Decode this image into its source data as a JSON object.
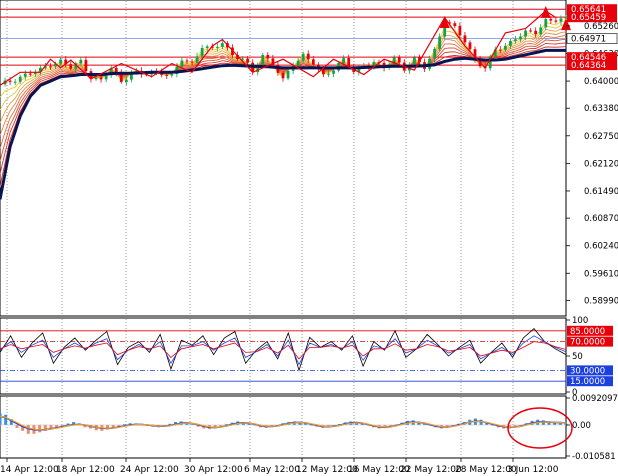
{
  "chart_data": [
    {
      "type": "candlestick",
      "panel": "price",
      "x_tick_labels": [
        "14 Apr 12:00",
        "18 Apr 12:00",
        "24 Apr 12:00",
        "30 Apr 12:00",
        "6 May 12:00",
        "12 May 12:00",
        "16 May 12:00",
        "22 May 12:00",
        "28 May 12:00",
        "3 Jun 12:00"
      ],
      "y_tick_labels": [
        "0.65260",
        "0.64630",
        "0.64000",
        "0.63380",
        "0.62750",
        "0.62120",
        "0.61490",
        "0.60870",
        "0.60240",
        "0.59610",
        "0.58990"
      ],
      "ylim": [
        0.5868,
        0.6576
      ],
      "current_price": {
        "value": 0.64971,
        "label": "0.64971"
      },
      "horizontal_levels": [
        {
          "value": 0.65641,
          "label": "0.65641",
          "color": "#e8000b"
        },
        {
          "value": 0.65459,
          "label": "0.65459",
          "color": "#e8000b"
        },
        {
          "value": 0.64546,
          "label": "0.64546",
          "color": "#e8000b"
        },
        {
          "value": 0.64364,
          "label": "0.64364",
          "color": "#e8000b"
        }
      ],
      "price_path_x": [
        0,
        2,
        4,
        6,
        8,
        10,
        12,
        14,
        16,
        18,
        20,
        22,
        24,
        26,
        28,
        30,
        32,
        34,
        36,
        38,
        40,
        42,
        44,
        46,
        48,
        50,
        52,
        54,
        56,
        58,
        60,
        62,
        64,
        66,
        68,
        70,
        72,
        74,
        76,
        78,
        80,
        82,
        84,
        86,
        88,
        90,
        92,
        94,
        96,
        98,
        100,
        102,
        104,
        106,
        108
      ],
      "price_path_y": [
        0.639,
        0.64,
        0.641,
        0.6418,
        0.6425,
        0.644,
        0.6445,
        0.643,
        0.6445,
        0.641,
        0.64,
        0.643,
        0.64,
        0.642,
        0.6415,
        0.642,
        0.642,
        0.641,
        0.645,
        0.644,
        0.648,
        0.647,
        0.649,
        0.646,
        0.645,
        0.642,
        0.646,
        0.644,
        0.64,
        0.644,
        0.646,
        0.644,
        0.641,
        0.643,
        0.645,
        0.642,
        0.6435,
        0.6445,
        0.643,
        0.645,
        0.643,
        0.645,
        0.643,
        0.647,
        0.654,
        0.652,
        0.649,
        0.645,
        0.643,
        0.647,
        0.648,
        0.65,
        0.651,
        0.651,
        0.654
      ],
      "ma_slow_path_y": [
        0.613,
        0.625,
        0.632,
        0.6365,
        0.639,
        0.64,
        0.641,
        0.6412,
        0.6415,
        0.6415,
        0.6415,
        0.6417,
        0.6418,
        0.6418,
        0.6419,
        0.642,
        0.642,
        0.642,
        0.6422,
        0.6425,
        0.6428,
        0.6432,
        0.6435,
        0.6436,
        0.6435,
        0.6434,
        0.6433,
        0.6432,
        0.643,
        0.643,
        0.643,
        0.643,
        0.643,
        0.643,
        0.643,
        0.643,
        0.6431,
        0.6432,
        0.6433,
        0.6434,
        0.6434,
        0.6434,
        0.6435,
        0.6437,
        0.6445,
        0.645,
        0.6452,
        0.645,
        0.6448,
        0.6448,
        0.645,
        0.6455,
        0.646,
        0.6465,
        0.647
      ],
      "zigzag_x": [
        0,
        4,
        8,
        10,
        12,
        14,
        18,
        24,
        30,
        34,
        38,
        42,
        44,
        50,
        56,
        62,
        66,
        72,
        76,
        82,
        88,
        92,
        96,
        100,
        104,
        108,
        110
      ],
      "zigzag_y": [
        0.639,
        0.642,
        0.642,
        0.645,
        0.643,
        0.6448,
        0.6405,
        0.644,
        0.641,
        0.644,
        0.642,
        0.648,
        0.6495,
        0.642,
        0.645,
        0.641,
        0.645,
        0.6415,
        0.645,
        0.6425,
        0.6545,
        0.648,
        0.643,
        0.651,
        0.652,
        0.656,
        0.6545
      ],
      "arrow_heads": [
        {
          "x": 88,
          "y": 0.6535
        },
        {
          "x": 108,
          "y": 0.6558
        },
        {
          "x": 112,
          "y": 0.653
        }
      ]
    },
    {
      "type": "line",
      "panel": "stochastic",
      "y_tick_labels": [
        "100",
        "50",
        "0"
      ],
      "ylim": [
        0,
        100
      ],
      "levels": [
        {
          "value": 85,
          "label": "85.0000",
          "color": "#e8000b"
        },
        {
          "value": 70,
          "label": "70.0000",
          "color": "#e8000b"
        },
        {
          "value": 30,
          "label": "30.0000",
          "color": "#1c3fe0"
        },
        {
          "value": 15,
          "label": "15.0000",
          "color": "#1c3fe0"
        }
      ],
      "series": [
        {
          "color": "#000000",
          "values": [
            55,
            78,
            48,
            68,
            82,
            40,
            62,
            75,
            58,
            72,
            84,
            38,
            62,
            70,
            55,
            80,
            32,
            72,
            65,
            78,
            52,
            75,
            84,
            40,
            58,
            70,
            46,
            82,
            30,
            76,
            62,
            70,
            58,
            78,
            36,
            70,
            58,
            85,
            48,
            60,
            80,
            66,
            50,
            62,
            72,
            40,
            55,
            68,
            48,
            75,
            88,
            70,
            60,
            52
          ]
        },
        {
          "color": "#1c3fe0",
          "values": [
            58,
            70,
            55,
            65,
            72,
            48,
            60,
            68,
            60,
            68,
            74,
            45,
            58,
            66,
            58,
            70,
            40,
            64,
            64,
            70,
            58,
            68,
            75,
            48,
            56,
            66,
            50,
            72,
            38,
            68,
            62,
            66,
            60,
            70,
            44,
            64,
            60,
            74,
            54,
            60,
            72,
            64,
            54,
            60,
            66,
            46,
            54,
            62,
            52,
            68,
            78,
            70,
            62,
            56
          ]
        },
        {
          "color": "#e8000b",
          "values": [
            60,
            66,
            60,
            63,
            66,
            55,
            60,
            64,
            61,
            65,
            68,
            52,
            58,
            63,
            60,
            64,
            48,
            60,
            63,
            66,
            60,
            64,
            68,
            55,
            56,
            62,
            54,
            65,
            46,
            62,
            62,
            64,
            61,
            65,
            50,
            60,
            60,
            67,
            58,
            60,
            66,
            63,
            57,
            59,
            62,
            50,
            54,
            58,
            55,
            62,
            70,
            68,
            63,
            59
          ]
        }
      ]
    },
    {
      "type": "bar",
      "panel": "macd",
      "y_tick_labels": [
        "0.0092097",
        "0.00",
        "-0.010581"
      ],
      "ylim": [
        -0.010581,
        0.0092097
      ],
      "histogram": [
        0.004,
        0.0035,
        0.002,
        -0.001,
        -0.002,
        -0.003,
        -0.003,
        -0.0025,
        -0.002,
        -0.0015,
        -0.001,
        -0.0005,
        0.0005,
        0.001,
        0.0005,
        -0.0008,
        -0.0012,
        -0.0018,
        -0.002,
        -0.0015,
        -0.001,
        -0.0005,
        0.0003,
        0.0006,
        0.0005,
        0.0002,
        -0.0003,
        -0.0006,
        -0.0008,
        -0.0005,
        0.0004,
        0.001,
        0.0012,
        0.0008,
        0.0002,
        -0.0006,
        -0.0012,
        -0.0014,
        -0.001,
        -0.0004,
        0.0003,
        0.0008,
        0.0012,
        0.0009,
        0.0004,
        -0.0002,
        -0.0008,
        -0.001,
        -0.0006,
        0.0,
        0.0006,
        0.001,
        0.0012,
        0.001,
        0.0006,
        0.0,
        -0.0006,
        -0.001,
        -0.0008,
        -0.0004,
        0.0003,
        0.0009,
        0.0012,
        0.001,
        0.0005,
        -0.0002,
        -0.0008,
        -0.0012,
        -0.001,
        -0.0005,
        0.0002,
        0.0008,
        0.0014,
        0.0016,
        0.0012,
        0.0006,
        -0.0002,
        -0.0008,
        -0.0012,
        -0.001,
        -0.0004,
        0.0004,
        0.001,
        0.0018,
        0.0022,
        0.0018,
        0.0008,
        0.0,
        -0.0008,
        -0.0012,
        -0.0012,
        -0.0008,
        -0.0002,
        0.0006,
        0.0014,
        0.0018,
        0.0016,
        0.0012,
        0.0008,
        0.0006,
        0.0004
      ],
      "signal_line": [
        0.003,
        0.0025,
        0.0015,
        0.0005,
        -0.0005,
        -0.0012,
        -0.0016,
        -0.0017,
        -0.0016,
        -0.0013,
        -0.001,
        -0.0006,
        -0.0002,
        0.0001,
        0.0002,
        0.0,
        -0.0004,
        -0.0008,
        -0.0011,
        -0.0012,
        -0.001,
        -0.0007,
        -0.0003,
        0.0,
        0.0002,
        0.0002,
        0.0,
        -0.0002,
        -0.0004,
        -0.0004,
        -0.0002,
        0.0002,
        0.0006,
        0.0007,
        0.0005,
        0.0001,
        -0.0004,
        -0.0008,
        -0.0009,
        -0.0007,
        -0.0003,
        0.0002,
        0.0006,
        0.0007,
        0.0006,
        0.0003,
        -0.0002,
        -0.0005,
        -0.0005,
        -0.0003,
        0.0001,
        0.0005,
        0.0008,
        0.0009,
        0.0007,
        0.0003,
        -0.0001,
        -0.0005,
        -0.0006,
        -0.0004,
        -0.0001,
        0.0004,
        0.0007,
        0.0008,
        0.0006,
        0.0002,
        -0.0003,
        -0.0007,
        -0.0008,
        -0.0006,
        -0.0002,
        0.0003,
        0.0008,
        0.001,
        0.0009,
        0.0006,
        0.0001,
        -0.0004,
        -0.0007,
        -0.0007,
        -0.0004,
        0.0,
        0.0005,
        0.001,
        0.0013,
        0.0012,
        0.0008,
        0.0003,
        -0.0002,
        -0.0006,
        -0.0008,
        -0.0007,
        -0.0004,
        0.0001,
        0.0006,
        0.001,
        0.0011,
        0.001,
        0.0009,
        0.0008,
        0.0007
      ]
    }
  ],
  "colors": {
    "bull_candle": "#15a04a",
    "bear_candle": "#e8000b",
    "level_tag": "#e8000b",
    "current_tag": "#ffffff",
    "ma_slow": "#0b1450",
    "zigzag": "#e8000b",
    "hist_up": "#3d8ee6",
    "hist_down": "#f08a68",
    "macd_signal": "#1c3fe0",
    "macd_orange": "#f0a020",
    "highlight_circle": "#e8000b",
    "ribbon": [
      "#f0d020",
      "#e8c24a",
      "#e6a64a",
      "#e38a4a",
      "#e06e40",
      "#dd5236",
      "#d93a2e",
      "#c62a28"
    ]
  }
}
